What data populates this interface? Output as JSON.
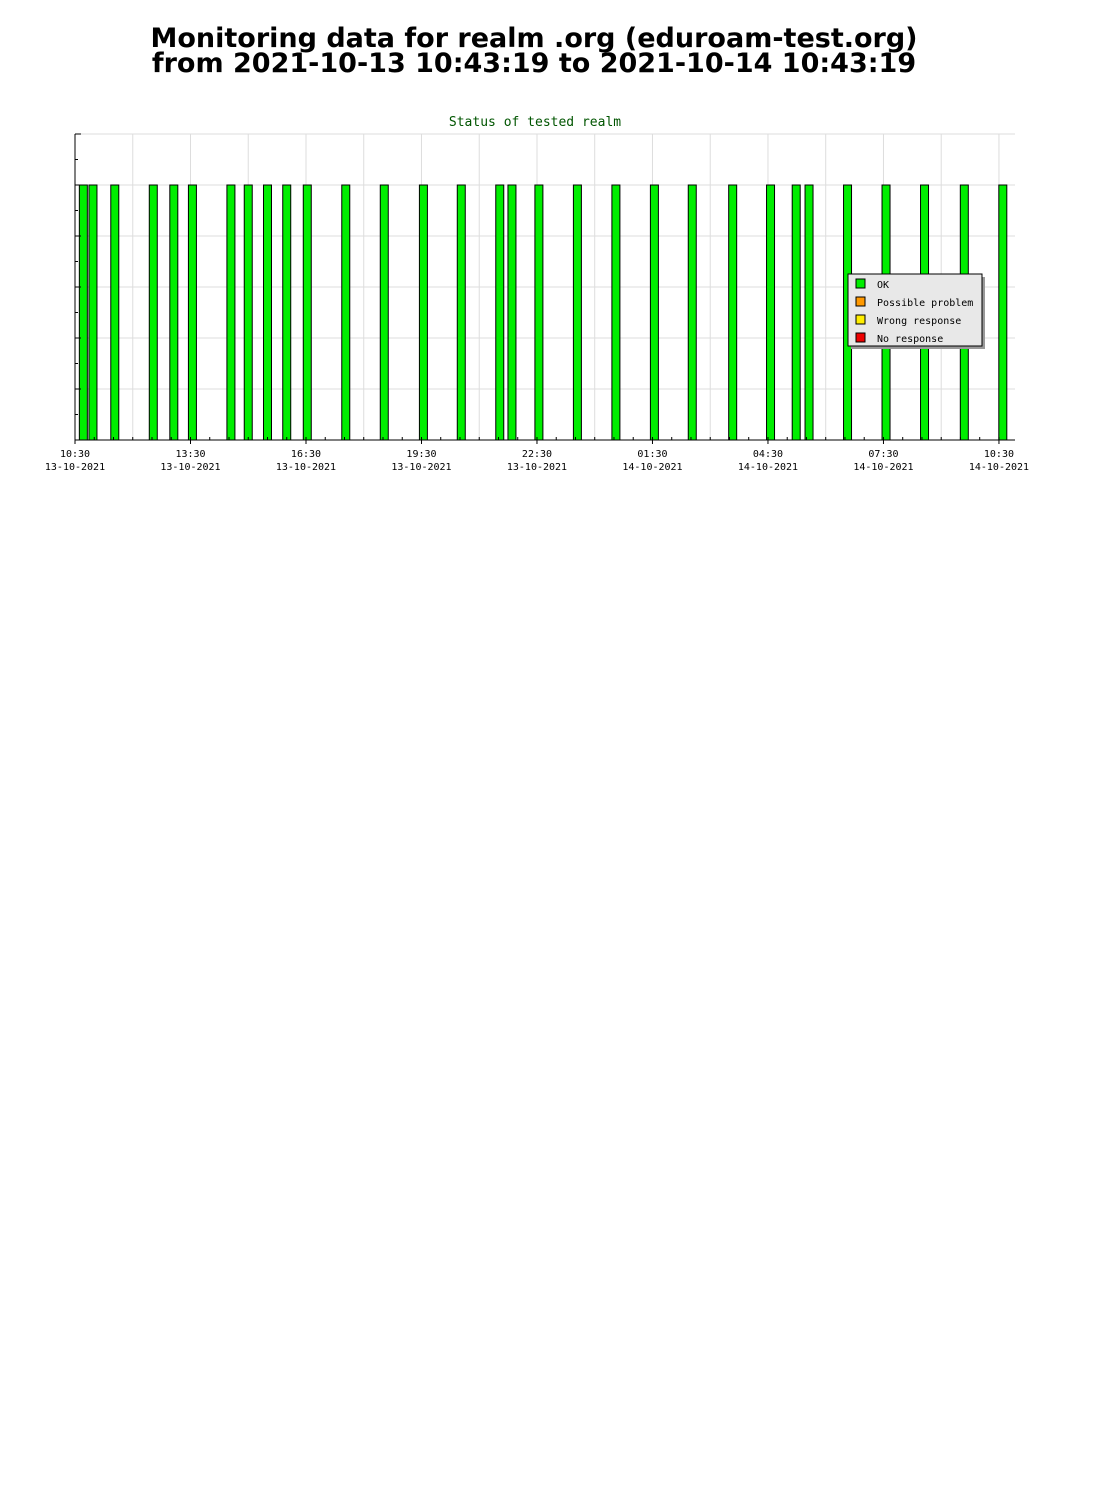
{
  "header": {
    "title_line1": "Monitoring data for realm .org  (eduroam-test.org)",
    "title_line2": "from 2021-10-13  10:43:19 to 2021-10-14  10:43:19"
  },
  "colors": {
    "ok": "#00ee00",
    "possible_problem": "#ff9900",
    "wrong_response": "#ffee00",
    "no_response": "#ee0000",
    "grid": "#dddddd",
    "title": "#005500",
    "legend_bg": "#e8e8e8"
  },
  "chart_data": {
    "type": "bar",
    "title": "Status of tested realm",
    "xlabel": "",
    "ylabel": "",
    "grid": true,
    "legend_position": "right",
    "x_axis": {
      "range": [
        "2021-10-13 10:30",
        "2021-10-14 10:55"
      ],
      "ticks": [
        {
          "time": "2021-10-13 10:30",
          "label1": "10:30",
          "label2": "13-10-2021"
        },
        {
          "time": "2021-10-13 13:30",
          "label1": "13:30",
          "label2": "13-10-2021"
        },
        {
          "time": "2021-10-13 16:30",
          "label1": "16:30",
          "label2": "13-10-2021"
        },
        {
          "time": "2021-10-13 19:30",
          "label1": "19:30",
          "label2": "13-10-2021"
        },
        {
          "time": "2021-10-13 22:30",
          "label1": "22:30",
          "label2": "13-10-2021"
        },
        {
          "time": "2021-10-14 01:30",
          "label1": "01:30",
          "label2": "14-10-2021"
        },
        {
          "time": "2021-10-14 04:30",
          "label1": "04:30",
          "label2": "14-10-2021"
        },
        {
          "time": "2021-10-14 07:30",
          "label1": "07:30",
          "label2": "14-10-2021"
        },
        {
          "time": "2021-10-14 10:30",
          "label1": "10:30",
          "label2": "14-10-2021"
        }
      ]
    },
    "ylim": [
      0,
      6
    ],
    "series": [
      {
        "name": "OK",
        "value": 5,
        "times": [
          "2021-10-13 10:43",
          "2021-10-13 10:58",
          "2021-10-13 11:32",
          "2021-10-13 12:32",
          "2021-10-13 13:04",
          "2021-10-13 13:33",
          "2021-10-13 14:33",
          "2021-10-13 15:00",
          "2021-10-13 15:30",
          "2021-10-13 16:00",
          "2021-10-13 16:32",
          "2021-10-13 17:32",
          "2021-10-13 18:32",
          "2021-10-13 19:33",
          "2021-10-13 20:32",
          "2021-10-13 21:32",
          "2021-10-13 21:51",
          "2021-10-13 22:33",
          "2021-10-13 23:33",
          "2021-10-14 00:33",
          "2021-10-14 01:33",
          "2021-10-14 02:32",
          "2021-10-14 03:35",
          "2021-10-14 04:34",
          "2021-10-14 05:14",
          "2021-10-14 05:34",
          "2021-10-14 06:34",
          "2021-10-14 07:34",
          "2021-10-14 08:34",
          "2021-10-14 09:36",
          "2021-10-14 10:36"
        ]
      },
      {
        "name": "Possible problem",
        "value": 5,
        "times": []
      },
      {
        "name": "Wrong response",
        "value": 5,
        "times": []
      },
      {
        "name": "No response",
        "value": 5,
        "times": []
      }
    ]
  }
}
